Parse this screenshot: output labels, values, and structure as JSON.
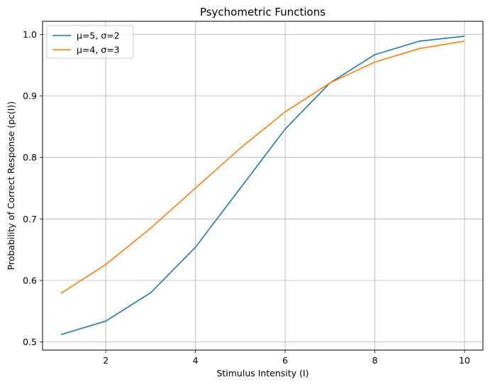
{
  "chart_data": {
    "type": "line",
    "title": "Psychometric Functions",
    "xlabel": "Stimulus Intensity (I)",
    "ylabel": "Probability of Correct Response (pc(I))",
    "xlim": [
      0.59,
      10.41
    ],
    "ylim": [
      0.4869,
      1.0212
    ],
    "xticks": [
      2,
      4,
      6,
      8,
      10
    ],
    "yticks": [
      0.5,
      0.6,
      0.7,
      0.8,
      0.9,
      1.0
    ],
    "ytick_labels": [
      "0.5",
      "0.6",
      "0.7",
      "0.8",
      "0.9",
      "1.0"
    ],
    "xtick_labels": [
      "2",
      "4",
      "6",
      "8",
      "10"
    ],
    "grid": true,
    "legend_position": "top-left",
    "x": [
      1,
      2,
      3,
      4,
      5,
      6,
      7,
      8,
      9,
      10
    ],
    "series": [
      {
        "name": "μ=5, σ=2",
        "color": "#1f77b4",
        "values": [
          0.512,
          0.534,
          0.58,
          0.654,
          0.75,
          0.846,
          0.921,
          0.967,
          0.989,
          0.997
        ]
      },
      {
        "name": "μ=4, σ=3",
        "color": "#ff7f0e",
        "values": [
          0.579,
          0.626,
          0.685,
          0.75,
          0.815,
          0.874,
          0.921,
          0.955,
          0.977,
          0.989
        ]
      }
    ]
  }
}
